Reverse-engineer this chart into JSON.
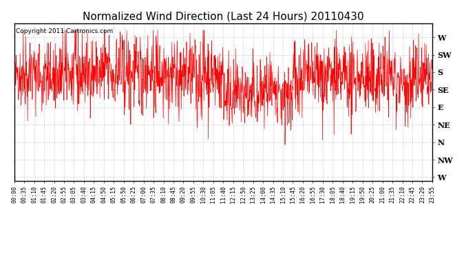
{
  "title": "Normalized Wind Direction (Last 24 Hours) 20110430",
  "copyright_text": "Copyright 2011 Cartronics.com",
  "line_color": "#ff0000",
  "bg_color": "#ffffff",
  "grid_color": "#999999",
  "ytick_labels": [
    "W",
    "SW",
    "S",
    "SE",
    "E",
    "NE",
    "N",
    "NW",
    "W"
  ],
  "ytick_values": [
    8,
    7,
    6,
    5,
    4,
    3,
    2,
    1,
    0
  ],
  "ylim": [
    -0.2,
    8.8
  ],
  "xtick_labels": [
    "00:00",
    "00:35",
    "01:10",
    "01:45",
    "02:20",
    "02:55",
    "03:05",
    "03:40",
    "04:15",
    "04:50",
    "05:15",
    "05:50",
    "06:25",
    "07:00",
    "07:35",
    "08:10",
    "08:45",
    "09:20",
    "09:55",
    "10:30",
    "11:05",
    "11:40",
    "12:15",
    "12:50",
    "13:25",
    "14:00",
    "14:35",
    "15:10",
    "15:45",
    "16:20",
    "16:55",
    "17:30",
    "18:05",
    "18:40",
    "19:15",
    "19:50",
    "20:25",
    "21:00",
    "21:35",
    "22:10",
    "22:45",
    "23:20",
    "23:55"
  ],
  "title_fontsize": 11,
  "copyright_fontsize": 6.5,
  "axis_label_fontsize": 6,
  "line_width": 0.5,
  "seed": 42
}
